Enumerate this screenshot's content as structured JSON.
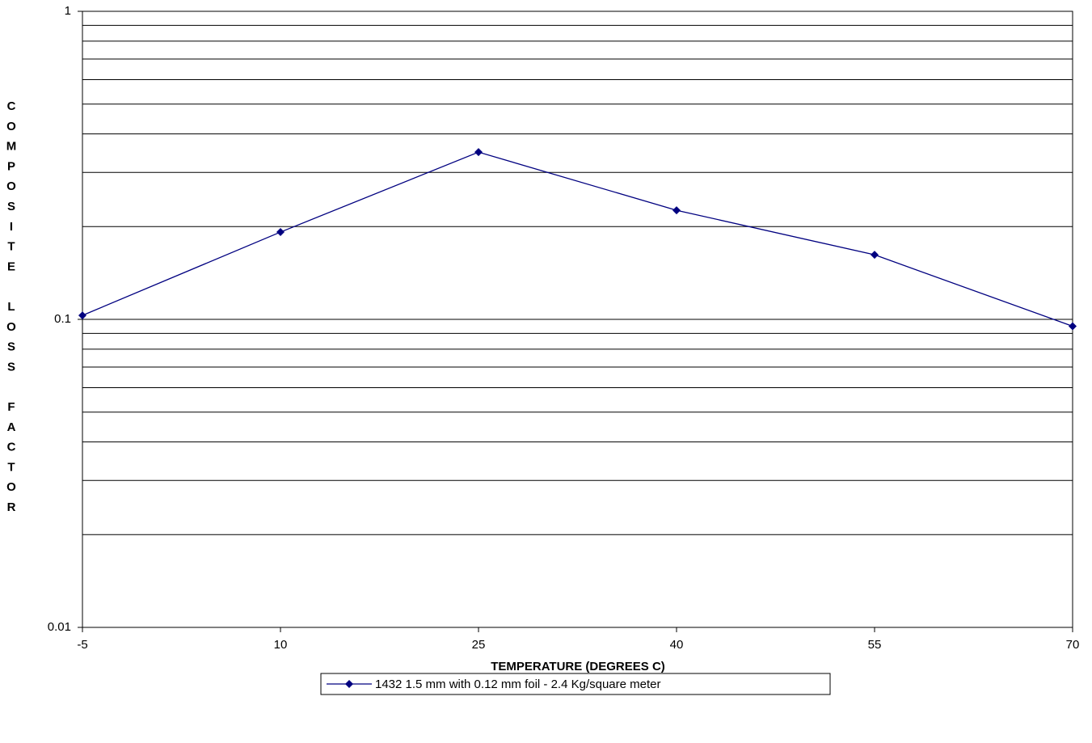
{
  "chart_data": {
    "type": "line",
    "y_label": "COMPOSITE LOSS FACTOR",
    "x_label": "TEMPERATURE (DEGREES C)",
    "x": [
      -5,
      10,
      25,
      40,
      55,
      70
    ],
    "series": [
      {
        "name": "1432 1.5 mm with 0.12 mm foil - 2.4 Kg/square meter",
        "color": "#000080",
        "values": [
          0.103,
          0.192,
          0.349,
          0.226,
          0.162,
          0.095
        ]
      }
    ],
    "xlim": [
      -5,
      70
    ],
    "xticks": [
      -5,
      10,
      25,
      40,
      55,
      70
    ],
    "ylim": [
      0.01,
      1
    ],
    "yticks": [
      0.01,
      0.1,
      1
    ],
    "yminorticks": [
      0.02,
      0.03,
      0.04,
      0.05,
      0.06,
      0.07,
      0.08,
      0.09,
      0.2,
      0.3,
      0.4,
      0.5,
      0.6,
      0.7,
      0.8,
      0.9
    ],
    "log_y": true,
    "grid": true,
    "legend": "bottom"
  }
}
